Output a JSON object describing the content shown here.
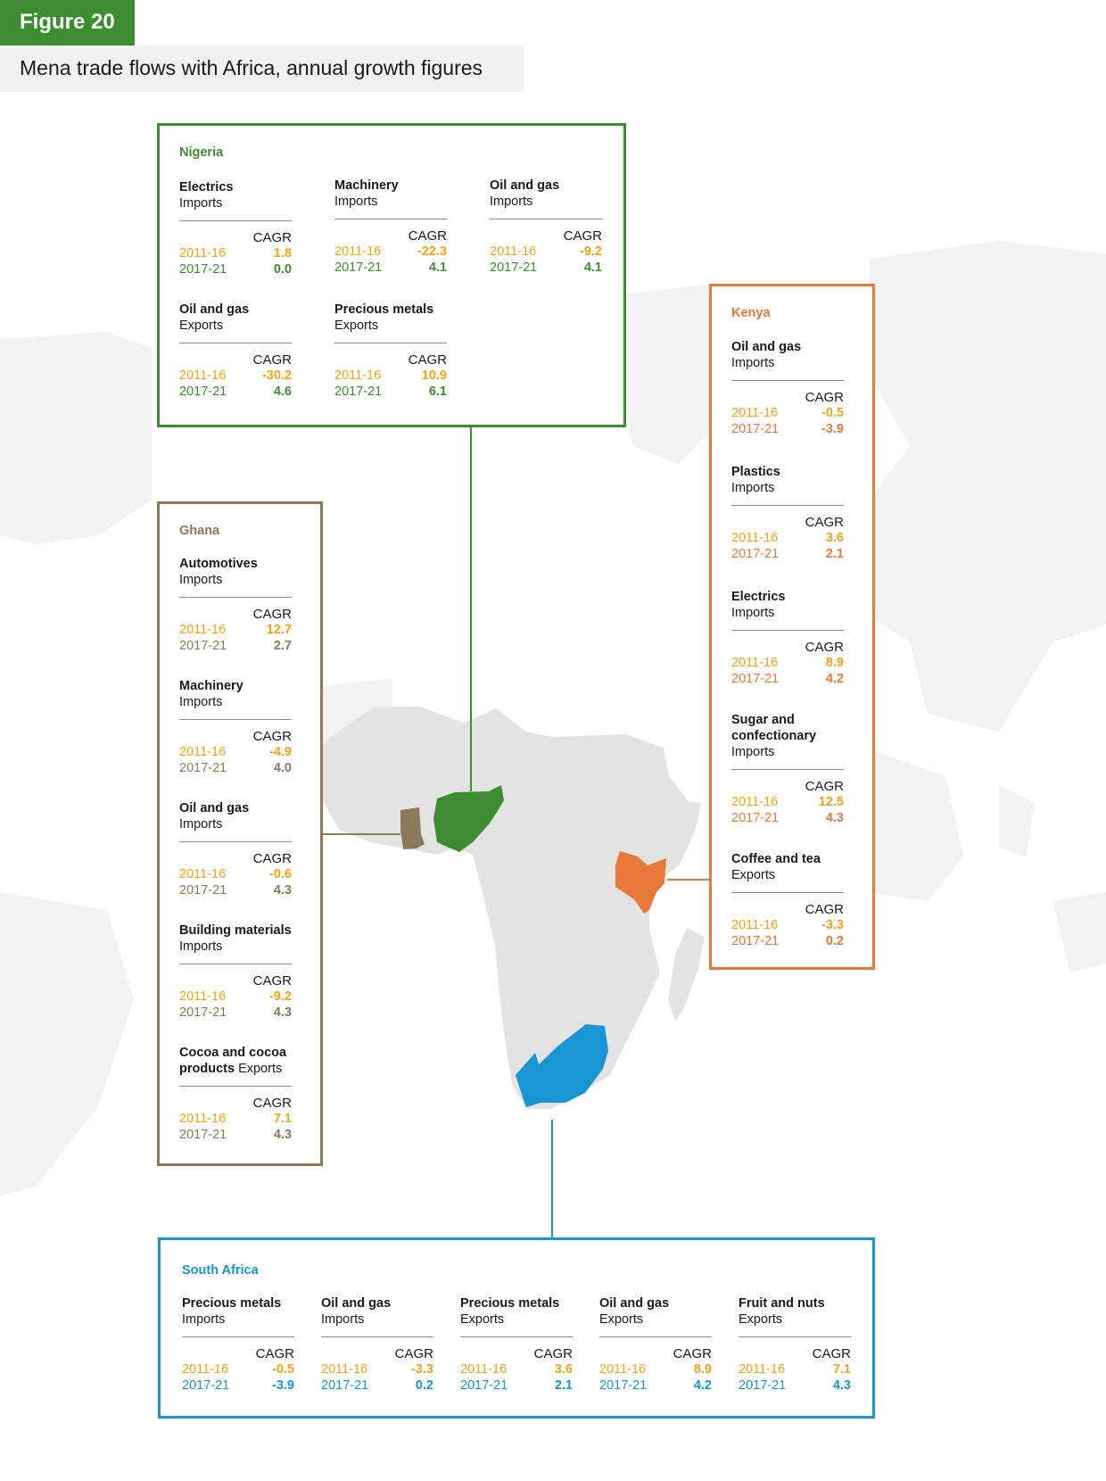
{
  "figure_label": "Figure 20",
  "title": "Mena trade flows with Africa, annual growth figures",
  "cagr_label": "CAGR",
  "colors": {
    "nigeria": "#3c8d2f",
    "ghana": "#8a7a5a",
    "kenya": "#e8793a",
    "south_africa": "#1a94d2",
    "period_2011_16": "#f3a21b"
  },
  "nigeria": {
    "name": "Nigeria",
    "products": [
      {
        "name": "Electrics",
        "flow": "Imports",
        "p1": "2011-16",
        "v1": "1.8",
        "p2": "2017-21",
        "v2": "0.0"
      },
      {
        "name": "Machinery",
        "flow": "Imports",
        "p1": "2011-16",
        "v1": "-22.3",
        "p2": "2017-21",
        "v2": "4.1"
      },
      {
        "name": "Oil and gas",
        "flow": "Imports",
        "p1": "2011-16",
        "v1": "-9.2",
        "p2": "2017-21",
        "v2": "4.1"
      },
      {
        "name": "Oil and gas",
        "flow": "Exports",
        "p1": "2011-16",
        "v1": "-30.2",
        "p2": "2017-21",
        "v2": "4.6"
      },
      {
        "name": "Precious metals",
        "flow": "Exports",
        "p1": "2011-16",
        "v1": "10.9",
        "p2": "2017-21",
        "v2": "6.1"
      }
    ]
  },
  "ghana": {
    "name": "Ghana",
    "products": [
      {
        "name": "Automotives",
        "flow": "Imports",
        "p1": "2011-16",
        "v1": "12.7",
        "p2": "2017-21",
        "v2": "2.7"
      },
      {
        "name": "Machinery",
        "flow": "Imports",
        "p1": "2011-16",
        "v1": "-4.9",
        "p2": "2017-21",
        "v2": "4.0"
      },
      {
        "name": "Oil and gas",
        "flow": "Imports",
        "p1": "2011-16",
        "v1": "-0.6",
        "p2": "2017-21",
        "v2": "4.3"
      },
      {
        "name": "Building materials",
        "flow": "Imports",
        "p1": "2011-16",
        "v1": "-9.2",
        "p2": "2017-21",
        "v2": "4.3"
      },
      {
        "name": "Cocoa and cocoa products",
        "flow": "Exports",
        "p1": "2011-16",
        "v1": "7.1",
        "p2": "2017-21",
        "v2": "4.3"
      }
    ]
  },
  "kenya": {
    "name": "Kenya",
    "products": [
      {
        "name": "Oil and gas",
        "flow": "Imports",
        "p1": "2011-16",
        "v1": "-0.5",
        "p2": "2017-21",
        "v2": "-3.9"
      },
      {
        "name": "Plastics",
        "flow": "Imports",
        "p1": "2011-16",
        "v1": "3.6",
        "p2": "2017-21",
        "v2": "2.1"
      },
      {
        "name": "Electrics",
        "flow": "Imports",
        "p1": "2011-16",
        "v1": "8.9",
        "p2": "2017-21",
        "v2": "4.2"
      },
      {
        "name": "Sugar and confectionary",
        "flow": "Imports",
        "p1": "2011-16",
        "v1": "12.5",
        "p2": "2017-21",
        "v2": "4.3"
      },
      {
        "name": "Coffee and tea",
        "flow": "Exports",
        "p1": "2011-16",
        "v1": "-3.3",
        "p2": "2017-21",
        "v2": "0.2"
      }
    ]
  },
  "south_africa": {
    "name": "South Africa",
    "products": [
      {
        "name": "Precious metals",
        "flow": "Imports",
        "p1": "2011-16",
        "v1": "-0.5",
        "p2": "2017-21",
        "v2": "-3.9"
      },
      {
        "name": "Oil and gas",
        "flow": "Imports",
        "p1": "2011-16",
        "v1": "-3.3",
        "p2": "2017-21",
        "v2": "0.2"
      },
      {
        "name": "Precious metals",
        "flow": "Exports",
        "p1": "2011-16",
        "v1": "3.6",
        "p2": "2017-21",
        "v2": "2.1"
      },
      {
        "name": "Oil and gas",
        "flow": "Exports",
        "p1": "2011-16",
        "v1": "8.9",
        "p2": "2017-21",
        "v2": "4.2"
      },
      {
        "name": "Fruit and nuts",
        "flow": "Exports",
        "p1": "2011-16",
        "v1": "7.1",
        "p2": "2017-21",
        "v2": "4.3"
      }
    ]
  }
}
